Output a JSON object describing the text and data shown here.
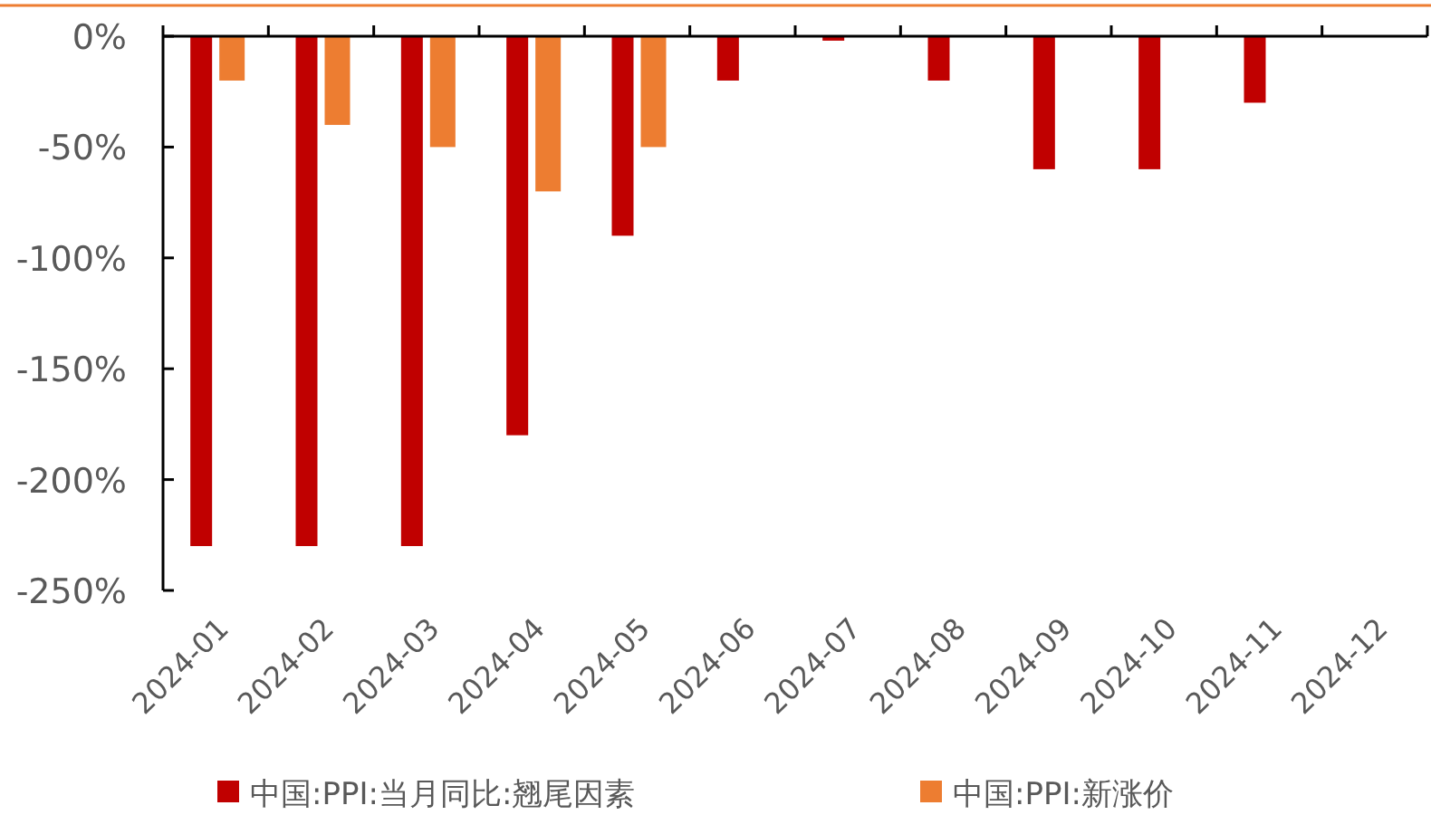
{
  "chart_data": {
    "type": "bar",
    "categories": [
      "2024-01",
      "2024-02",
      "2024-03",
      "2024-04",
      "2024-05",
      "2024-06",
      "2024-07",
      "2024-08",
      "2024-09",
      "2024-10",
      "2024-11",
      "2024-12"
    ],
    "series": [
      {
        "name": "中国:PPI:当月同比:翘尾因素",
        "color": "#c00000",
        "values": [
          -230,
          -230,
          -230,
          -180,
          -90,
          -20,
          -2,
          -20,
          -60,
          -60,
          -30,
          null
        ]
      },
      {
        "name": "中国:PPI:新涨价",
        "color": "#ed7d31",
        "values": [
          -20,
          -40,
          -50,
          -70,
          -50,
          null,
          null,
          null,
          null,
          null,
          null,
          null
        ]
      }
    ],
    "ylim": [
      -250,
      0
    ],
    "yticks": [
      {
        "value": 0,
        "label": "0%"
      },
      {
        "value": -50,
        "label": "-50%"
      },
      {
        "value": -100,
        "label": "-100%"
      },
      {
        "value": -150,
        "label": "-150%"
      },
      {
        "value": -200,
        "label": "-200%"
      },
      {
        "value": -250,
        "label": "-250%"
      }
    ],
    "grid": false,
    "legend": "bottom"
  }
}
